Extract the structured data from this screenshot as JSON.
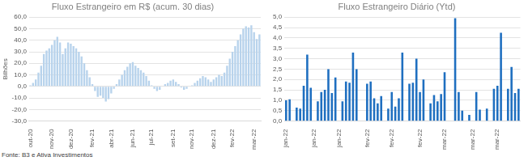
{
  "chart_data": [
    {
      "type": "bar",
      "title": "Fluxo Estrangeiro em R$ (acum. 30 dias)",
      "y_label": "Bilhões",
      "categories": [
        "out-20",
        null,
        null,
        null,
        null,
        null,
        null,
        null,
        "nov-20",
        null,
        null,
        null,
        null,
        null,
        null,
        "dez-20",
        null,
        null,
        null,
        null,
        null,
        null,
        null,
        "fev-21",
        null,
        null,
        null,
        null,
        null,
        null,
        "abr-21",
        null,
        null,
        null,
        null,
        null,
        null,
        null,
        "jun-21",
        null,
        null,
        null,
        null,
        null,
        null,
        "jul-21",
        null,
        null,
        null,
        null,
        null,
        null,
        null,
        "set-21",
        null,
        null,
        null,
        null,
        null,
        null,
        "nov-21",
        null,
        null,
        null,
        null,
        null,
        null,
        null,
        "dez-21",
        null,
        null,
        null,
        null,
        null,
        null,
        "fev-22",
        null,
        null,
        null,
        null,
        null,
        null,
        null,
        "mar-22",
        null,
        null
      ],
      "values": [
        1,
        3,
        6,
        12,
        18,
        28,
        31,
        33,
        36,
        40,
        43,
        38,
        28,
        33,
        38,
        37,
        35,
        33,
        30,
        26,
        20,
        14,
        8,
        2,
        -4,
        -9,
        -8,
        -10,
        -13,
        -11,
        -6,
        -2,
        2,
        6,
        10,
        14,
        17,
        20,
        21,
        18,
        16,
        14,
        12,
        9,
        5,
        1,
        -2,
        -4,
        -3,
        0,
        2,
        3,
        5,
        6,
        4,
        2,
        -1,
        -3,
        -2,
        0,
        1,
        3,
        5,
        7,
        9,
        8,
        6,
        4,
        6,
        8,
        10,
        9,
        12,
        18,
        24,
        30,
        35,
        40,
        45,
        50,
        52,
        51,
        53,
        47,
        41,
        45
      ],
      "color": "#b8d3ec",
      "ylim": [
        -30,
        60
      ],
      "yticks": [
        {
          "value": -30,
          "label": "-30,0"
        },
        {
          "value": -20,
          "label": "-20,0"
        },
        {
          "value": -10,
          "label": "-10,0"
        },
        {
          "value": 0,
          "label": "0,0"
        },
        {
          "value": 10,
          "label": "10,0"
        },
        {
          "value": 20,
          "label": "20,0"
        },
        {
          "value": 30,
          "label": "30,0"
        },
        {
          "value": 40,
          "label": "40,0"
        },
        {
          "value": 50,
          "label": "50,0"
        },
        {
          "value": 60,
          "label": "60,0"
        }
      ],
      "grid": true
    },
    {
      "type": "bar",
      "title": "Fluxo Estrangeiro Diário (Ytd)",
      "categories": [
        "jan-22",
        null,
        null,
        null,
        null,
        null,
        null,
        null,
        "jan-22",
        null,
        null,
        null,
        null,
        null,
        null,
        "jan-22",
        null,
        null,
        null,
        null,
        null,
        null,
        null,
        "fev-22",
        null,
        null,
        null,
        null,
        null,
        null,
        "fev-22",
        null,
        null,
        null,
        null,
        null,
        null,
        null,
        "fev-22",
        null,
        null,
        null,
        null,
        null,
        null,
        "mar-22",
        null,
        null,
        null,
        null,
        null,
        null,
        null,
        "mar-22",
        null,
        null,
        null,
        null,
        null,
        null,
        "mar-22",
        null,
        null,
        null,
        null,
        null,
        null
      ],
      "values": [
        1.0,
        1.05,
        null,
        0.65,
        0.6,
        1.7,
        3.2,
        1.6,
        null,
        0.95,
        1.4,
        1.5,
        2.5,
        1.35,
        2.1,
        null,
        0.95,
        1.9,
        1.85,
        3.3,
        2.5,
        null,
        null,
        1.8,
        1.9,
        1.1,
        0.85,
        1.2,
        null,
        0.6,
        1.4,
        0.7,
        1.1,
        3.3,
        null,
        1.8,
        1.85,
        3.0,
        1.4,
        2.0,
        null,
        0.85,
        1.25,
        0.95,
        1.3,
        2.35,
        null,
        null,
        4.95,
        1.4,
        0.5,
        null,
        0.3,
        null,
        1.4,
        0.55,
        null,
        0.6,
        null,
        1.55,
        1.7,
        4.25,
        null,
        1.55,
        2.6,
        1.35,
        1.55
      ],
      "color": "#1f6fc0",
      "ylim": [
        0,
        5
      ],
      "yticks": [
        {
          "value": 0,
          "label": "0,0"
        },
        {
          "value": 0.5,
          "label": "0,5"
        },
        {
          "value": 1,
          "label": "1,0"
        },
        {
          "value": 1.5,
          "label": "1,5"
        },
        {
          "value": 2,
          "label": "2,0"
        },
        {
          "value": 2.5,
          "label": "2,5"
        },
        {
          "value": 3,
          "label": "3,0"
        },
        {
          "value": 3.5,
          "label": "3,5"
        },
        {
          "value": 4,
          "label": "4,0"
        },
        {
          "value": 4.5,
          "label": "4,5"
        },
        {
          "value": 5,
          "label": "5,0"
        }
      ],
      "grid": true
    }
  ],
  "source": "Fonte: B3 e Ativa Investimentos"
}
